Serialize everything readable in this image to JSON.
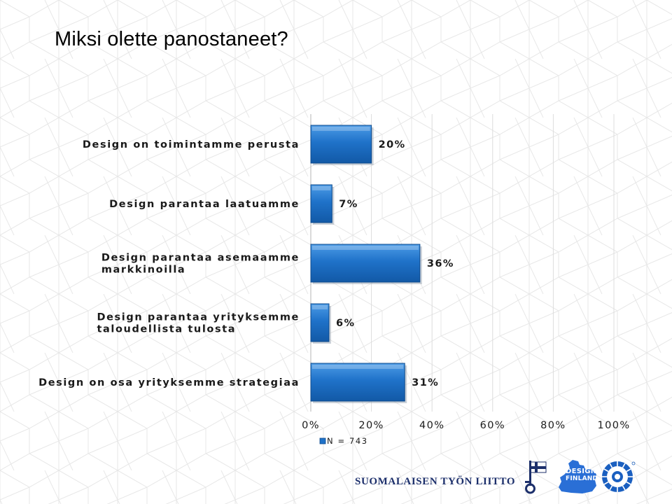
{
  "slide": {
    "title": "Miksi olette panostaneet?"
  },
  "chart_data": {
    "type": "bar",
    "orientation": "horizontal",
    "categories": [
      "Design on toimintamme perusta",
      "Design parantaa laatuamme",
      "Design parantaa asemaamme markkinoilla",
      "Design parantaa yrityksemme taloudellista tulosta",
      "Design on osa yrityksemme strategiaa"
    ],
    "values": [
      20,
      7,
      36,
      6,
      31
    ],
    "value_labels": [
      "20%",
      "7%",
      "36%",
      "6%",
      "31%"
    ],
    "xlim": [
      0,
      100
    ],
    "x_ticks": [
      "0%",
      "20%",
      "40%",
      "60%",
      "80%",
      "100%"
    ],
    "series": [
      {
        "name": "N = 743",
        "values": [
          20,
          7,
          36,
          6,
          31
        ]
      }
    ],
    "legend_position": "bottom-left",
    "grid": true,
    "bar_color": "#1f72c9"
  },
  "footer": {
    "organization": "SUOMALAISEN TYÖN LIITTO",
    "logo_text_line1": "DESIGN",
    "logo_text_line2": "FINLAND"
  },
  "icons": [
    "finnish-flag-key-icon",
    "design-finland-map-icon",
    "wheel-emblem-icon"
  ],
  "colors": {
    "navy": "#1c2f6b",
    "logo_blue": "#2a6fd6"
  }
}
